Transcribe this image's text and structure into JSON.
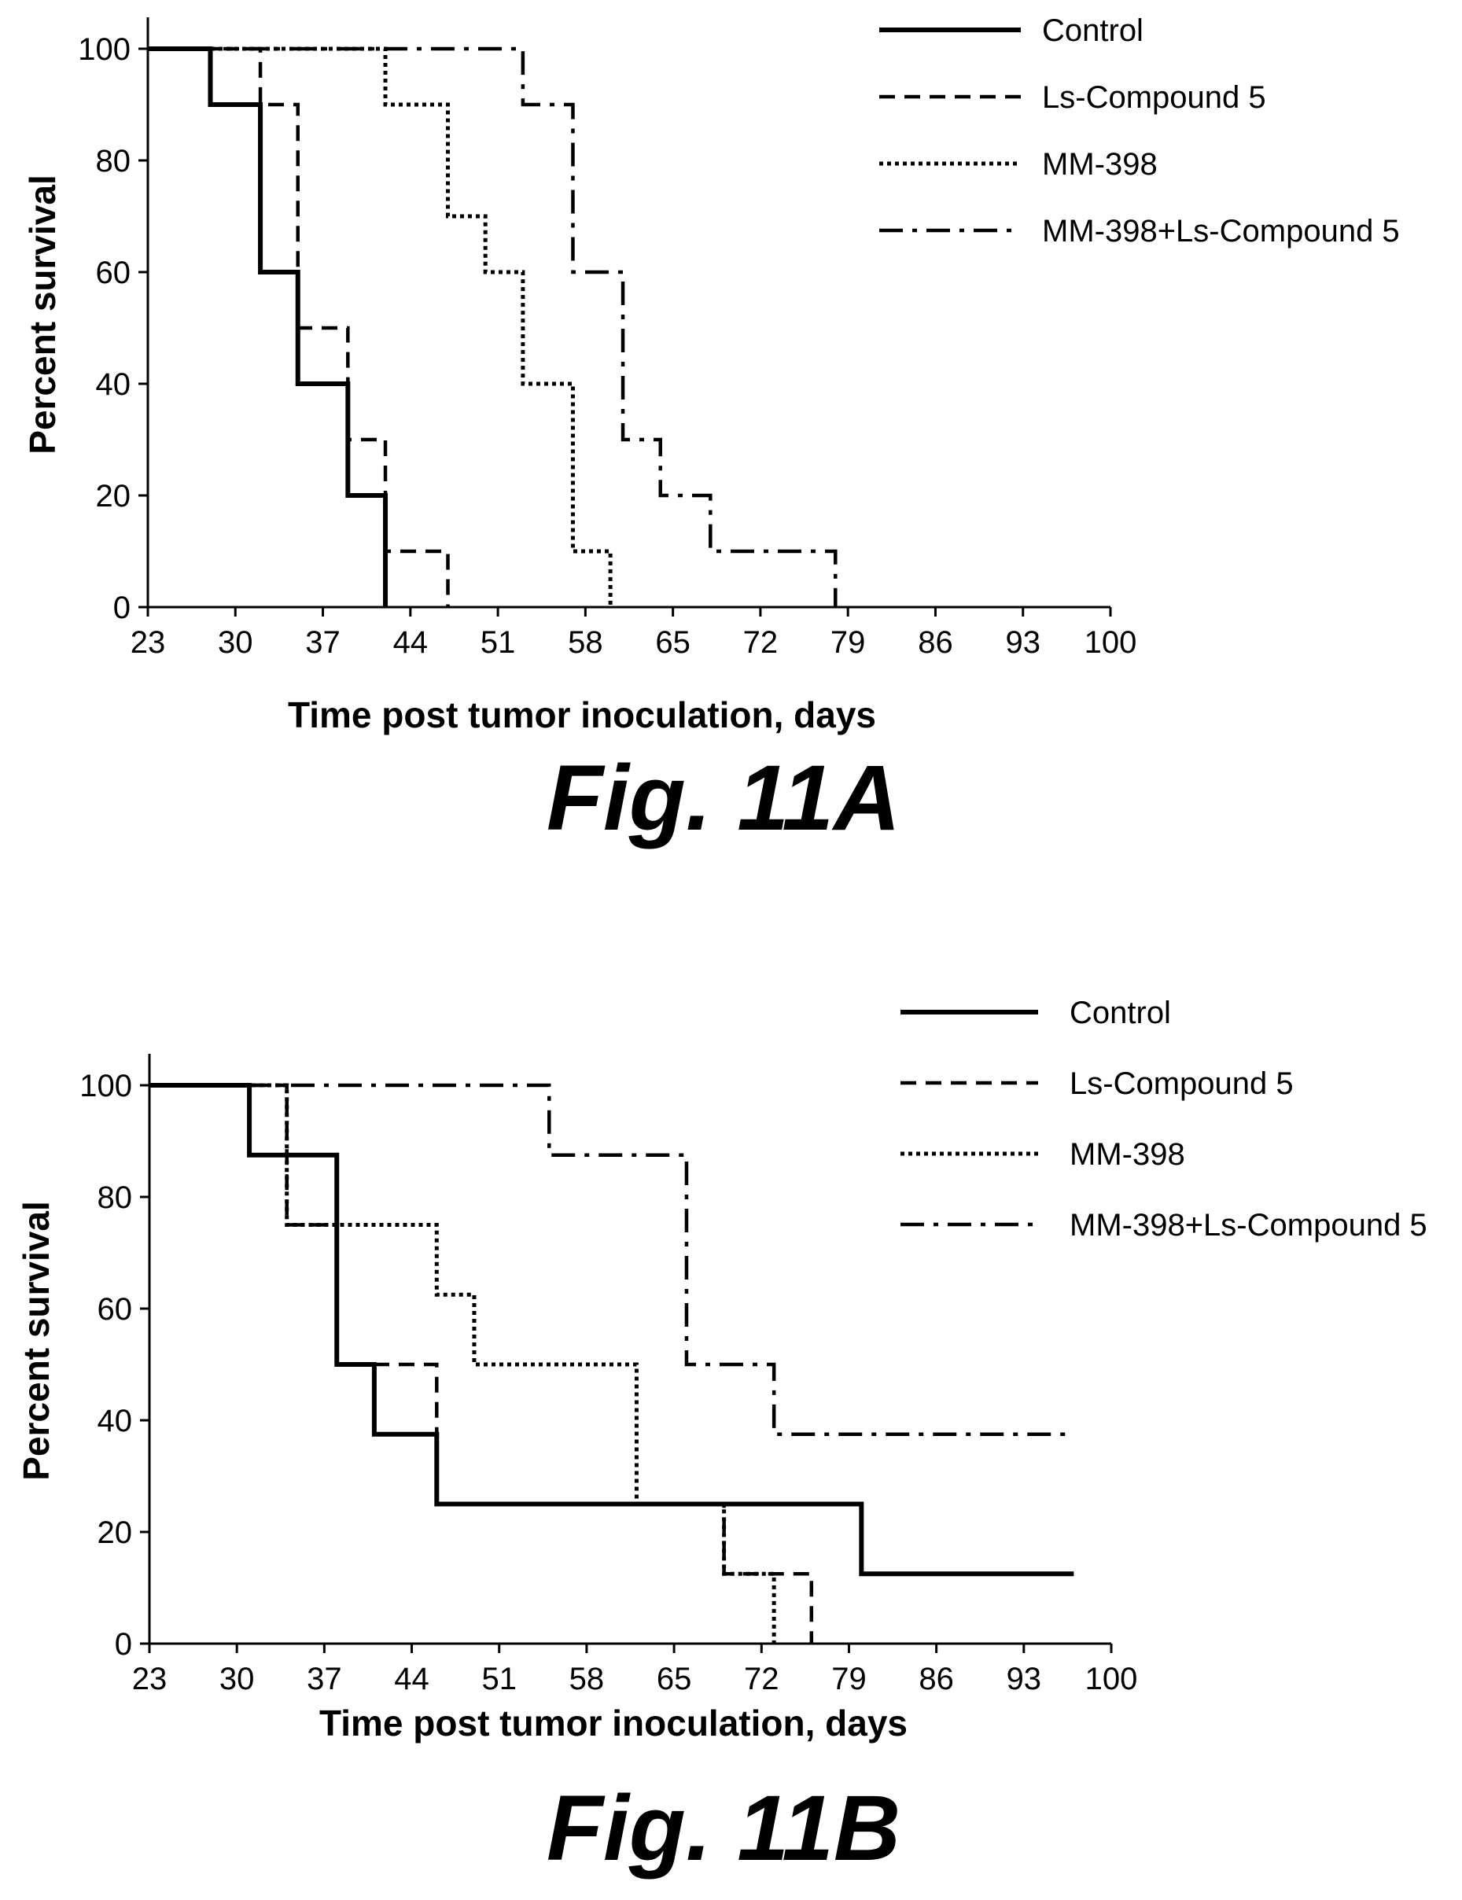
{
  "chart_data": [
    {
      "type": "line",
      "subtype": "step",
      "caption": "Fig. 11A",
      "xlabel": "Time post tumor inoculation, days",
      "ylabel": "Percent survival",
      "xlim": [
        23,
        100
      ],
      "ylim": [
        0,
        100
      ],
      "x_ticks": [
        "23",
        "30",
        "37",
        "44",
        "51",
        "58",
        "65",
        "72",
        "79",
        "86",
        "93",
        "100"
      ],
      "y_ticks": [
        "0",
        "20",
        "40",
        "60",
        "80",
        "100"
      ],
      "grid": false,
      "legend_position": "top-right",
      "series": [
        {
          "name": "Control",
          "style": "solid",
          "color": "#000000",
          "x": [
            23,
            28,
            32,
            35,
            39,
            42
          ],
          "y": [
            100,
            90,
            60,
            40,
            20,
            0
          ]
        },
        {
          "name": "Ls-Compound 5",
          "style": "dashed",
          "color": "#000000",
          "x": [
            23,
            32,
            35,
            39,
            42,
            47
          ],
          "y": [
            100,
            90,
            50,
            30,
            10,
            0
          ]
        },
        {
          "name": "MM-398",
          "style": "dotted",
          "color": "#000000",
          "x": [
            23,
            42,
            47,
            50,
            53,
            57,
            60
          ],
          "y": [
            100,
            90,
            70,
            60,
            40,
            10,
            0
          ]
        },
        {
          "name": "MM-398+Ls-Compound 5",
          "style": "dashdot",
          "color": "#000000",
          "x": [
            23,
            53,
            57,
            61,
            64,
            68,
            78
          ],
          "y": [
            100,
            90,
            60,
            30,
            20,
            10,
            0
          ]
        }
      ]
    },
    {
      "type": "line",
      "subtype": "step",
      "caption": "Fig. 11B",
      "xlabel": "Time post tumor inoculation, days",
      "ylabel": "Percent survival",
      "xlim": [
        23,
        100
      ],
      "ylim": [
        0,
        100
      ],
      "x_ticks": [
        "23",
        "30",
        "37",
        "44",
        "51",
        "58",
        "65",
        "72",
        "79",
        "86",
        "93",
        "100"
      ],
      "y_ticks": [
        "0",
        "20",
        "40",
        "60",
        "80",
        "100"
      ],
      "grid": false,
      "legend_position": "top-right",
      "series": [
        {
          "name": "Control",
          "style": "solid",
          "color": "#000000",
          "x": [
            23,
            31,
            38,
            41,
            46,
            80,
            97
          ],
          "y": [
            100,
            87.5,
            50,
            37.5,
            25,
            12.5,
            12.5
          ]
        },
        {
          "name": "Ls-Compound 5",
          "style": "dashed",
          "color": "#000000",
          "x": [
            23,
            34,
            38,
            46,
            69,
            76
          ],
          "y": [
            100,
            75,
            50,
            25,
            12.5,
            0
          ]
        },
        {
          "name": "MM-398",
          "style": "dotted",
          "color": "#000000",
          "x": [
            23,
            34,
            46,
            49,
            62,
            69,
            73
          ],
          "y": [
            100,
            75,
            62.5,
            50,
            25,
            12.5,
            0
          ]
        },
        {
          "name": "MM-398+Ls-Compound 5",
          "style": "dashdot",
          "color": "#000000",
          "x": [
            23,
            55,
            66,
            73,
            97
          ],
          "y": [
            100,
            87.5,
            50,
            37.5,
            37.5
          ]
        }
      ]
    }
  ]
}
